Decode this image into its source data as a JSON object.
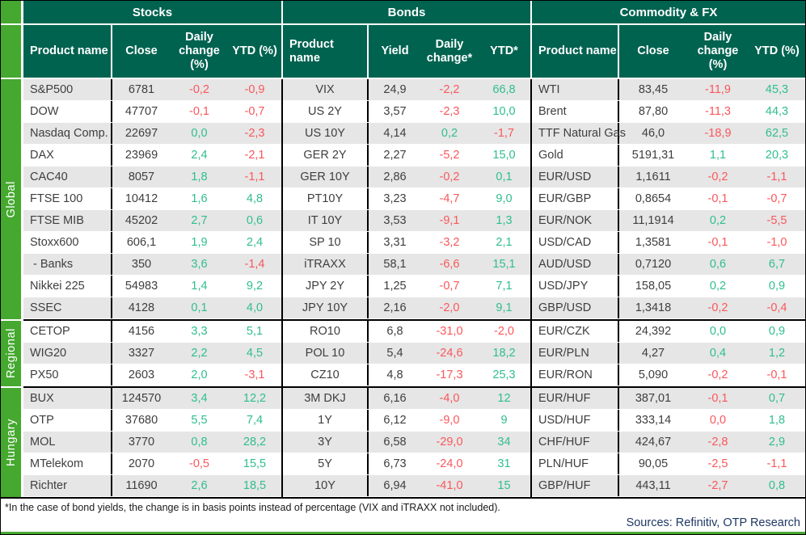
{
  "table": {
    "sections": [
      {
        "id": "stocks",
        "title": "Stocks",
        "columns": [
          "Product name",
          "Close",
          "Daily change (%)",
          "YTD (%)"
        ]
      },
      {
        "id": "bonds",
        "title": "Bonds",
        "columns": [
          "Product name",
          "Yield",
          "Daily change*",
          "YTD*"
        ]
      },
      {
        "id": "fx",
        "title": "Commodity & FX",
        "columns": [
          "Product name",
          "Close",
          "Daily change (%)",
          "YTD (%)"
        ]
      }
    ],
    "groups": [
      {
        "label": "Global",
        "rows": {
          "stocks": [
            [
              "S&P500",
              "6781",
              "-0,2",
              "r",
              "-0,9",
              "r"
            ],
            [
              "DOW",
              "47707",
              "-0,1",
              "r",
              "-0,7",
              "r"
            ],
            [
              "Nasdaq Comp.",
              "22697",
              "0,0",
              "g",
              "-2,3",
              "r"
            ],
            [
              "DAX",
              "23969",
              "2,4",
              "g",
              "-2,1",
              "r"
            ],
            [
              "CAC40",
              "8057",
              "1,8",
              "g",
              "-1,1",
              "r"
            ],
            [
              "FTSE 100",
              "10412",
              "1,6",
              "g",
              "4,8",
              "g"
            ],
            [
              "FTSE MIB",
              "45202",
              "2,7",
              "g",
              "0,6",
              "g"
            ],
            [
              "Stoxx600",
              "606,1",
              "1,9",
              "g",
              "2,4",
              "g"
            ],
            [
              " - Banks",
              "350",
              "3,6",
              "g",
              "-1,4",
              "r"
            ],
            [
              "Nikkei 225",
              "54983",
              "1,4",
              "g",
              "9,2",
              "g"
            ],
            [
              "SSEC",
              "4128",
              "0,1",
              "g",
              "4,0",
              "g"
            ]
          ],
          "bonds": [
            [
              "VIX",
              "24,9",
              "-2,2",
              "r",
              "66,8",
              "g"
            ],
            [
              "US 2Y",
              "3,57",
              "-2,3",
              "r",
              "10,0",
              "g"
            ],
            [
              "US 10Y",
              "4,14",
              "0,2",
              "g",
              "-1,7",
              "r"
            ],
            [
              "GER 2Y",
              "2,27",
              "-5,2",
              "r",
              "15,0",
              "g"
            ],
            [
              "GER 10Y",
              "2,86",
              "-0,2",
              "r",
              "0,1",
              "g"
            ],
            [
              "PT10Y",
              "3,23",
              "-4,7",
              "r",
              "9,0",
              "g"
            ],
            [
              "IT 10Y",
              "3,53",
              "-9,1",
              "r",
              "1,3",
              "g"
            ],
            [
              "SP 10",
              "3,31",
              "-3,2",
              "r",
              "2,1",
              "g"
            ],
            [
              "iTRAXX",
              "58,1",
              "-6,6",
              "r",
              "15,1",
              "g"
            ],
            [
              "JPY 2Y",
              "1,25",
              "-0,7",
              "r",
              "7,1",
              "g"
            ],
            [
              "JPY 10Y",
              "2,16",
              "-2,0",
              "r",
              "9,1",
              "g"
            ]
          ],
          "fx": [
            [
              "WTI",
              "83,45",
              "-11,9",
              "r",
              "45,3",
              "g"
            ],
            [
              "Brent",
              "87,80",
              "-11,3",
              "r",
              "44,3",
              "g"
            ],
            [
              "TTF Natural Gas",
              "46,0",
              "-18,9",
              "r",
              "62,5",
              "g"
            ],
            [
              "Gold",
              "5191,31",
              "1,1",
              "g",
              "20,3",
              "g"
            ],
            [
              "EUR/USD",
              "1,1611",
              "-0,2",
              "r",
              "-1,1",
              "r"
            ],
            [
              "EUR/GBP",
              "0,8654",
              "-0,1",
              "r",
              "-0,7",
              "r"
            ],
            [
              "EUR/NOK",
              "11,1914",
              "0,2",
              "g",
              "-5,5",
              "r"
            ],
            [
              "USD/CAD",
              "1,3581",
              "-0,1",
              "r",
              "-1,0",
              "r"
            ],
            [
              "AUD/USD",
              "0,7120",
              "0,6",
              "g",
              "6,7",
              "g"
            ],
            [
              "USD/JPY",
              "158,05",
              "0,2",
              "g",
              "0,9",
              "g"
            ],
            [
              "GBP/USD",
              "1,3418",
              "-0,2",
              "r",
              "-0,4",
              "r"
            ]
          ]
        }
      },
      {
        "label": "Regional",
        "rows": {
          "stocks": [
            [
              "CETOP",
              "4156",
              "3,3",
              "g",
              "5,1",
              "g"
            ],
            [
              "WIG20",
              "3327",
              "2,2",
              "g",
              "4,5",
              "g"
            ],
            [
              "PX50",
              "2603",
              "2,0",
              "g",
              "-3,1",
              "r"
            ]
          ],
          "bonds": [
            [
              "RO10",
              "6,8",
              "-31,0",
              "r",
              "-2,0",
              "r"
            ],
            [
              "POL 10",
              "5,4",
              "-24,6",
              "r",
              "18,2",
              "g"
            ],
            [
              "CZ10",
              "4,8",
              "-17,3",
              "r",
              "25,3",
              "g"
            ]
          ],
          "fx": [
            [
              "EUR/CZK",
              "24,392",
              "0,0",
              "g",
              "0,9",
              "g"
            ],
            [
              "EUR/PLN",
              "4,27",
              "0,4",
              "g",
              "1,2",
              "g"
            ],
            [
              "EUR/RON",
              "5,090",
              "-0,2",
              "r",
              "-0,1",
              "r"
            ]
          ]
        }
      },
      {
        "label": "Hungary",
        "rows": {
          "stocks": [
            [
              "BUX",
              "124570",
              "3,4",
              "g",
              "12,2",
              "g"
            ],
            [
              "OTP",
              "37680",
              "5,5",
              "g",
              "7,4",
              "g"
            ],
            [
              "MOL",
              "3770",
              "0,8",
              "g",
              "28,2",
              "g"
            ],
            [
              "MTelekom",
              "2070",
              "-0,5",
              "r",
              "15,5",
              "g"
            ],
            [
              "Richter",
              "11690",
              "2,6",
              "g",
              "18,5",
              "g"
            ]
          ],
          "bonds": [
            [
              "3M DKJ",
              "6,16",
              "-4,0",
              "r",
              "12",
              "g"
            ],
            [
              "1Y",
              "6,12",
              "-9,0",
              "r",
              "9",
              "g"
            ],
            [
              "3Y",
              "6,58",
              "-29,0",
              "r",
              "34",
              "g"
            ],
            [
              "5Y",
              "6,73",
              "-24,0",
              "r",
              "31",
              "g"
            ],
            [
              "10Y",
              "6,94",
              "-41,0",
              "r",
              "15",
              "g"
            ]
          ],
          "fx": [
            [
              "EUR/HUF",
              "387,01",
              "-0,1",
              "r",
              "0,7",
              "g"
            ],
            [
              "USD/HUF",
              "333,14",
              "0,0",
              "r",
              "1,8",
              "g"
            ],
            [
              "CHF/HUF",
              "424,67",
              "-2,8",
              "r",
              "2,9",
              "g"
            ],
            [
              "PLN/HUF",
              "90,05",
              "-2,5",
              "r",
              "-1,1",
              "r"
            ],
            [
              "GBP/HUF",
              "443,11",
              "-2,7",
              "r",
              "0,8",
              "g"
            ]
          ]
        }
      }
    ]
  },
  "footer": {
    "footnote": "*In the case of bond yields, the change is in basis points instead of percentage (VIX and iTRAXX not included).",
    "sources": "Sources: Refinitiv, OTP Research"
  },
  "colors": {
    "header_green": "#006350",
    "strip_green": "#45A82F",
    "row_gray": "#E6E6E6",
    "positive_text": "#2FBE8F",
    "negative_text": "#FA575C",
    "sources_navy": "#1F3864"
  }
}
